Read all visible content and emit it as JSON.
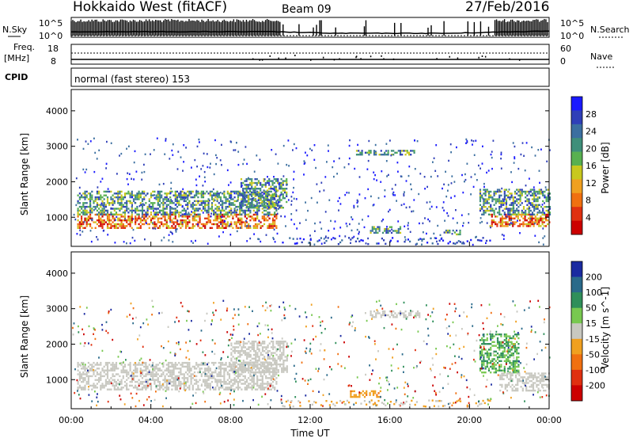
{
  "header": {
    "station": "Hokkaido West (fitACF)",
    "beam": "Beam 09",
    "date": "27/Feb/2016"
  },
  "top_panels": {
    "noise_label": "N.Sky",
    "noise_right_label": "N.Search",
    "noise_ticks_left": [
      "10^5",
      "10^0"
    ],
    "noise_ticks_right": [
      "10^5",
      "10^0"
    ],
    "freq_label": "Freq.",
    "freq_unit": "[MHz]",
    "freq_ticks": [
      "18",
      "8"
    ],
    "nave_label": "Nave",
    "nave_ticks": [
      "60",
      "0"
    ],
    "cpid_label": "CPID",
    "cpid_value": "normal (fast stereo) 153"
  },
  "chart_data": [
    {
      "type": "heatmap",
      "name": "power",
      "ylabel": "Slant Range [km]",
      "yticks": [
        1000,
        2000,
        3000,
        4000
      ],
      "ylim": [
        180,
        4600
      ],
      "colorbar_label": "Power [dB]",
      "colorbar_ticks": [
        4,
        8,
        12,
        16,
        20,
        24,
        28
      ],
      "colorbar_colors": [
        "#1a1aff",
        "#2f3fb8",
        "#3b6fa0",
        "#3f8f7a",
        "#58b050",
        "#c8c81e",
        "#f0a020",
        "#f07010",
        "#e03010",
        "#cc0000"
      ],
      "regions": [
        {
          "t_start": 0.3,
          "t_end": 10.3,
          "r_lo": 700,
          "r_hi": 1100,
          "level": "high"
        },
        {
          "t_start": 0.3,
          "t_end": 10.3,
          "r_lo": 1100,
          "r_hi": 1750,
          "level": "medium"
        },
        {
          "t_start": 8.5,
          "t_end": 10.8,
          "r_lo": 1250,
          "r_hi": 2100,
          "level": "medium"
        },
        {
          "t_start": 14.3,
          "t_end": 17.2,
          "r_lo": 2750,
          "r_hi": 2900,
          "level": "medium"
        },
        {
          "t_start": 15.0,
          "t_end": 16.5,
          "r_lo": 550,
          "r_hi": 750,
          "level": "medium"
        },
        {
          "t_start": 18.7,
          "t_end": 19.5,
          "r_lo": 500,
          "r_hi": 650,
          "level": "medium"
        },
        {
          "t_start": 21.0,
          "t_end": 24.0,
          "r_lo": 750,
          "r_hi": 1100,
          "level": "high"
        },
        {
          "t_start": 20.5,
          "t_end": 24.0,
          "r_lo": 1100,
          "r_hi": 1800,
          "level": "medium"
        }
      ]
    },
    {
      "type": "heatmap",
      "name": "velocity",
      "ylabel": "Slant Range [km]",
      "yticks": [
        1000,
        2000,
        3000,
        4000
      ],
      "ylim": [
        180,
        4600
      ],
      "colorbar_label": "Velocity [m s^-1]",
      "colorbar_ticks": [
        200,
        100,
        50,
        15,
        -15,
        -50,
        -100,
        -200
      ],
      "colorbar_colors": [
        "#1a2aa0",
        "#2a6a8a",
        "#2f8f5a",
        "#78c850",
        "#c8c8c0",
        "#f0a020",
        "#f07010",
        "#e03010",
        "#cc0000"
      ],
      "regions": [
        {
          "t_start": 0.3,
          "t_end": 10.3,
          "r_lo": 700,
          "r_hi": 1500,
          "velocity": 0
        },
        {
          "t_start": 8.0,
          "t_end": 10.8,
          "r_lo": 1200,
          "r_hi": 2100,
          "velocity": 0
        },
        {
          "t_start": 15.0,
          "t_end": 17.5,
          "r_lo": 2750,
          "r_hi": 2950,
          "velocity": 0
        },
        {
          "t_start": 14.0,
          "t_end": 15.5,
          "r_lo": 500,
          "r_hi": 700,
          "velocity": -40
        },
        {
          "t_start": 20.5,
          "t_end": 22.5,
          "r_lo": 1200,
          "r_hi": 2300,
          "velocity": 30
        },
        {
          "t_start": 21.5,
          "t_end": 24.0,
          "r_lo": 700,
          "r_hi": 1200,
          "velocity": 0
        }
      ]
    }
  ],
  "xaxis": {
    "label": "Time UT",
    "ticks": [
      "00:00",
      "04:00",
      "08:00",
      "12:00",
      "16:00",
      "20:00",
      "00:00"
    ],
    "range_hours": [
      0,
      24
    ]
  }
}
